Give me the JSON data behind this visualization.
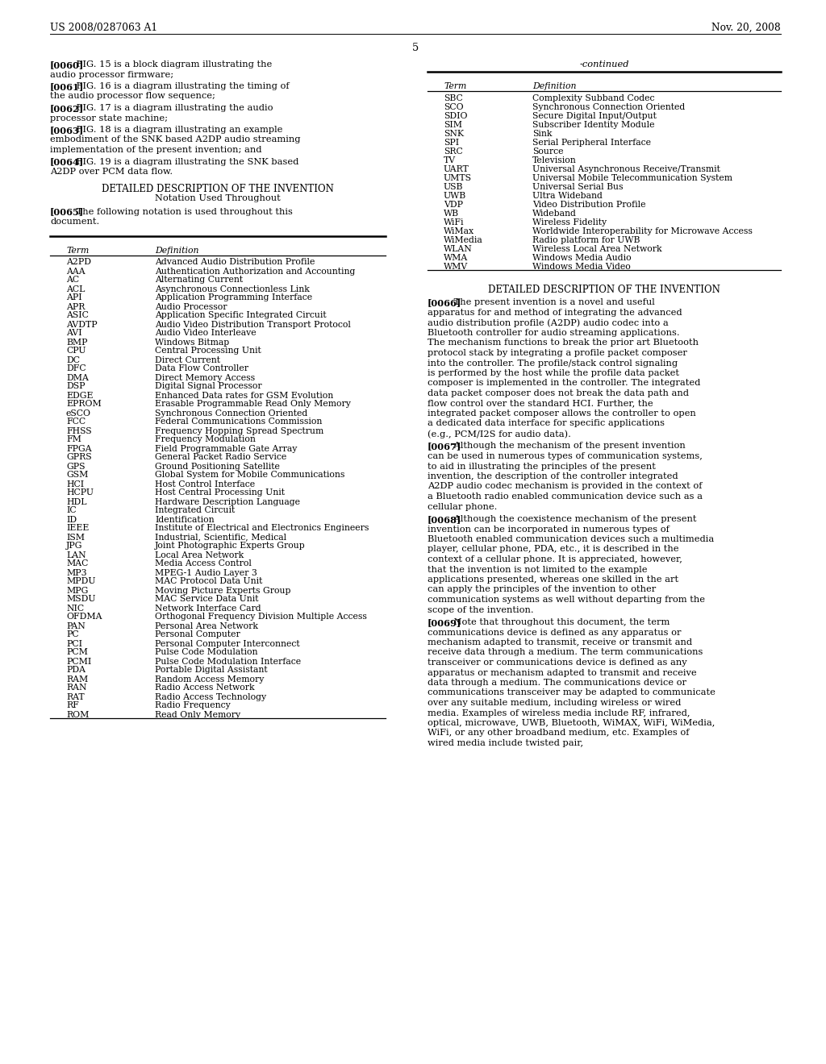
{
  "header_left": "US 2008/0287063 A1",
  "header_right": "Nov. 20, 2008",
  "page_number": "5",
  "bg": "#ffffff",
  "fg": "#000000",
  "left_paras": [
    {
      "tag": "[0060]",
      "fignum": "15",
      "rest": " is a block diagram illustrating the audio processor firmware;"
    },
    {
      "tag": "[0061]",
      "fignum": "16",
      "rest": " is a diagram illustrating the timing of the audio processor flow sequence;"
    },
    {
      "tag": "[0062]",
      "fignum": "17",
      "rest": " is a diagram illustrating the audio processor state machine;"
    },
    {
      "tag": "[0063]",
      "fignum": "18",
      "rest": " is a diagram illustrating an example embodiment of the SNK based A2DP audio streaming implementation of the present invention; and"
    },
    {
      "tag": "[0064]",
      "fignum": "19",
      "rest": " is a diagram illustrating the SNK based A2DP over PCM data flow."
    }
  ],
  "section1": "DETAILED DESCRIPTION OF THE INVENTION",
  "section2": "Notation Used Throughout",
  "para0065_tag": "[0065]",
  "para0065_text": "The following notation is used throughout this document.",
  "left_table_rows": [
    [
      "A2PD",
      "Advanced Audio Distribution Profile"
    ],
    [
      "AAA",
      "Authentication Authorization and Accounting"
    ],
    [
      "AC",
      "Alternating Current"
    ],
    [
      "ACL",
      "Asynchronous Connectionless Link"
    ],
    [
      "API",
      "Application Programming Interface"
    ],
    [
      "APR",
      "Audio Processor"
    ],
    [
      "ASIC",
      "Application Specific Integrated Circuit"
    ],
    [
      "AVDTP",
      "Audio Video Distribution Transport Protocol"
    ],
    [
      "AVI",
      "Audio Video Interleave"
    ],
    [
      "BMP",
      "Windows Bitmap"
    ],
    [
      "CPU",
      "Central Processing Unit"
    ],
    [
      "DC",
      "Direct Current"
    ],
    [
      "DFC",
      "Data Flow Controller"
    ],
    [
      "DMA",
      "Direct Memory Access"
    ],
    [
      "DSP",
      "Digital Signal Processor"
    ],
    [
      "EDGE",
      "Enhanced Data rates for GSM Evolution"
    ],
    [
      "EPROM",
      "Erasable Programmable Read Only Memory"
    ],
    [
      "eSCO",
      "Synchronous Connection Oriented"
    ],
    [
      "FCC",
      "Federal Communications Commission"
    ],
    [
      "FHSS",
      "Frequency Hopping Spread Spectrum"
    ],
    [
      "FM",
      "Frequency Modulation"
    ],
    [
      "FPGA",
      "Field Programmable Gate Array"
    ],
    [
      "GPRS",
      "General Packet Radio Service"
    ],
    [
      "GPS",
      "Ground Positioning Satellite"
    ],
    [
      "GSM",
      "Global System for Mobile Communications"
    ],
    [
      "HCI",
      "Host Control Interface"
    ],
    [
      "HCPU",
      "Host Central Processing Unit"
    ],
    [
      "HDL",
      "Hardware Description Language"
    ],
    [
      "IC",
      "Integrated Circuit"
    ],
    [
      "ID",
      "Identification"
    ],
    [
      "IEEE",
      "Institute of Electrical and Electronics Engineers"
    ],
    [
      "ISM",
      "Industrial, Scientific, Medical"
    ],
    [
      "JPG",
      "Joint Photographic Experts Group"
    ],
    [
      "LAN",
      "Local Area Network"
    ],
    [
      "MAC",
      "Media Access Control"
    ],
    [
      "MP3",
      "MPEG-1 Audio Layer 3"
    ],
    [
      "MPDU",
      "MAC Protocol Data Unit"
    ],
    [
      "MPG",
      "Moving Picture Experts Group"
    ],
    [
      "MSDU",
      "MAC Service Data Unit"
    ],
    [
      "NIC",
      "Network Interface Card"
    ],
    [
      "OFDMA",
      "Orthogonal Frequency Division Multiple Access"
    ],
    [
      "PAN",
      "Personal Area Network"
    ],
    [
      "PC",
      "Personal Computer"
    ],
    [
      "PCI",
      "Personal Computer Interconnect"
    ],
    [
      "PCM",
      "Pulse Code Modulation"
    ],
    [
      "PCMI",
      "Pulse Code Modulation Interface"
    ],
    [
      "PDA",
      "Portable Digital Assistant"
    ],
    [
      "RAM",
      "Random Access Memory"
    ],
    [
      "RAN",
      "Radio Access Network"
    ],
    [
      "RAT",
      "Radio Access Technology"
    ],
    [
      "RF",
      "Radio Frequency"
    ],
    [
      "ROM",
      "Read Only Memory"
    ]
  ],
  "right_continued": "-continued",
  "right_table_rows": [
    [
      "SBC",
      "Complexity Subband Codec"
    ],
    [
      "SCO",
      "Synchronous Connection Oriented"
    ],
    [
      "SDIO",
      "Secure Digital Input/Output"
    ],
    [
      "SIM",
      "Subscriber Identity Module"
    ],
    [
      "SNK",
      "Sink"
    ],
    [
      "SPI",
      "Serial Peripheral Interface"
    ],
    [
      "SRC",
      "Source"
    ],
    [
      "TV",
      "Television"
    ],
    [
      "UART",
      "Universal Asynchronous Receive/Transmit"
    ],
    [
      "UMTS",
      "Universal Mobile Telecommunication System"
    ],
    [
      "USB",
      "Universal Serial Bus"
    ],
    [
      "UWB",
      "Ultra Wideband"
    ],
    [
      "VDP",
      "Video Distribution Profile"
    ],
    [
      "WB",
      "Wideband"
    ],
    [
      "WiFi",
      "Wireless Fidelity"
    ],
    [
      "WiMax",
      "Worldwide Interoperability for Microwave Access"
    ],
    [
      "WiMedia",
      "Radio platform for UWB"
    ],
    [
      "WLAN",
      "Wireless Local Area Network"
    ],
    [
      "WMA",
      "Windows Media Audio"
    ],
    [
      "WMV",
      "Windows Media Video"
    ]
  ],
  "right_section": "DETAILED DESCRIPTION OF THE INVENTION",
  "right_paras": [
    {
      "tag": "[0066]",
      "text": "The present invention is a novel and useful apparatus for and method of integrating the advanced audio distribution profile (A2DP) audio codec into a Bluetooth controller for audio streaming applications. The mechanism functions to break the prior art Bluetooth protocol stack by integrating a profile packet composer into the controller. The profile/stack control signaling is performed by the host while the profile data packet composer is implemented in the controller. The integrated data packet composer does not break the data path and flow control over the standard HCI. Further, the integrated packet composer allows the controller to open a dedicated data interface for specific applications (e.g., PCM/I2S for audio data)."
    },
    {
      "tag": "[0067]",
      "text": "Although the mechanism of the present invention can be used in numerous types of communication systems, to aid in illustrating the principles of the present invention, the description of the controller integrated A2DP audio codec mechanism is provided in the context of a Bluetooth radio enabled communication device such as a cellular phone."
    },
    {
      "tag": "[0068]",
      "text": "Although the coexistence mechanism of the present invention can be incorporated in numerous types of Bluetooth enabled communication devices such a multimedia player, cellular phone, PDA, etc., it is described in the context of a cellular phone. It is appreciated, however, that the invention is not limited to the example applications presented, whereas one skilled in the art can apply the principles of the invention to other communication systems as well without departing from the scope of the invention."
    },
    {
      "tag": "[0069]",
      "text": "Note that throughout this document, the term communications device is defined as any apparatus or mechanism adapted to transmit, receive or transmit and receive data through a medium. The term communications transceiver or communications device is defined as any apparatus or mechanism adapted to transmit and receive data through a medium. The communications device or communications transceiver may be adapted to communicate over any suitable medium, including wireless or wired media. Examples of wireless media include RF, infrared, optical, microwave, UWB, Bluetooth, WiMAX, WiFi, WiMedia, WiFi, or any other broadband medium, etc. Examples of wired media include twisted pair,"
    }
  ]
}
